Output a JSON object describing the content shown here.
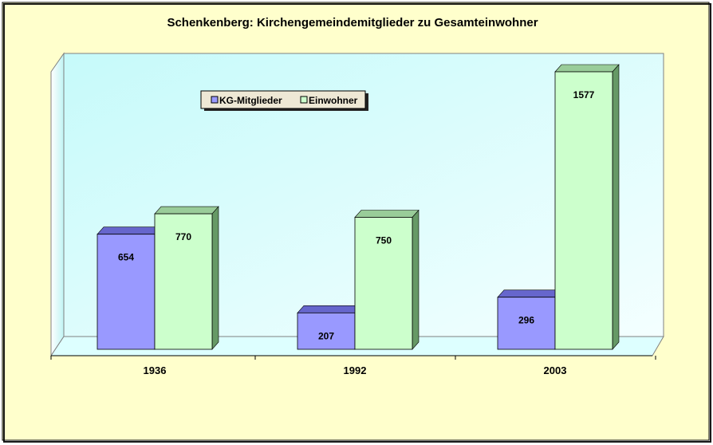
{
  "chart_data": {
    "type": "bar",
    "title": "Schenkenberg: Kirchengemeindemitglieder zu Gesamteinwohner",
    "categories": [
      "1936",
      "1992",
      "2003"
    ],
    "series": [
      {
        "name": "KG-Mitglieder",
        "values": [
          654,
          207,
          296
        ],
        "color": "#9999FF"
      },
      {
        "name": "Einwohner",
        "values": [
          770,
          750,
          1577
        ],
        "color": "#CCFFCC"
      }
    ],
    "xlabel": "",
    "ylabel": "",
    "ylim": [
      0,
      1600
    ],
    "grid": false,
    "legend": "top-left",
    "style": "3d"
  },
  "colors": {
    "background": "#FFFFCC",
    "wall": "#CCFFFF"
  }
}
